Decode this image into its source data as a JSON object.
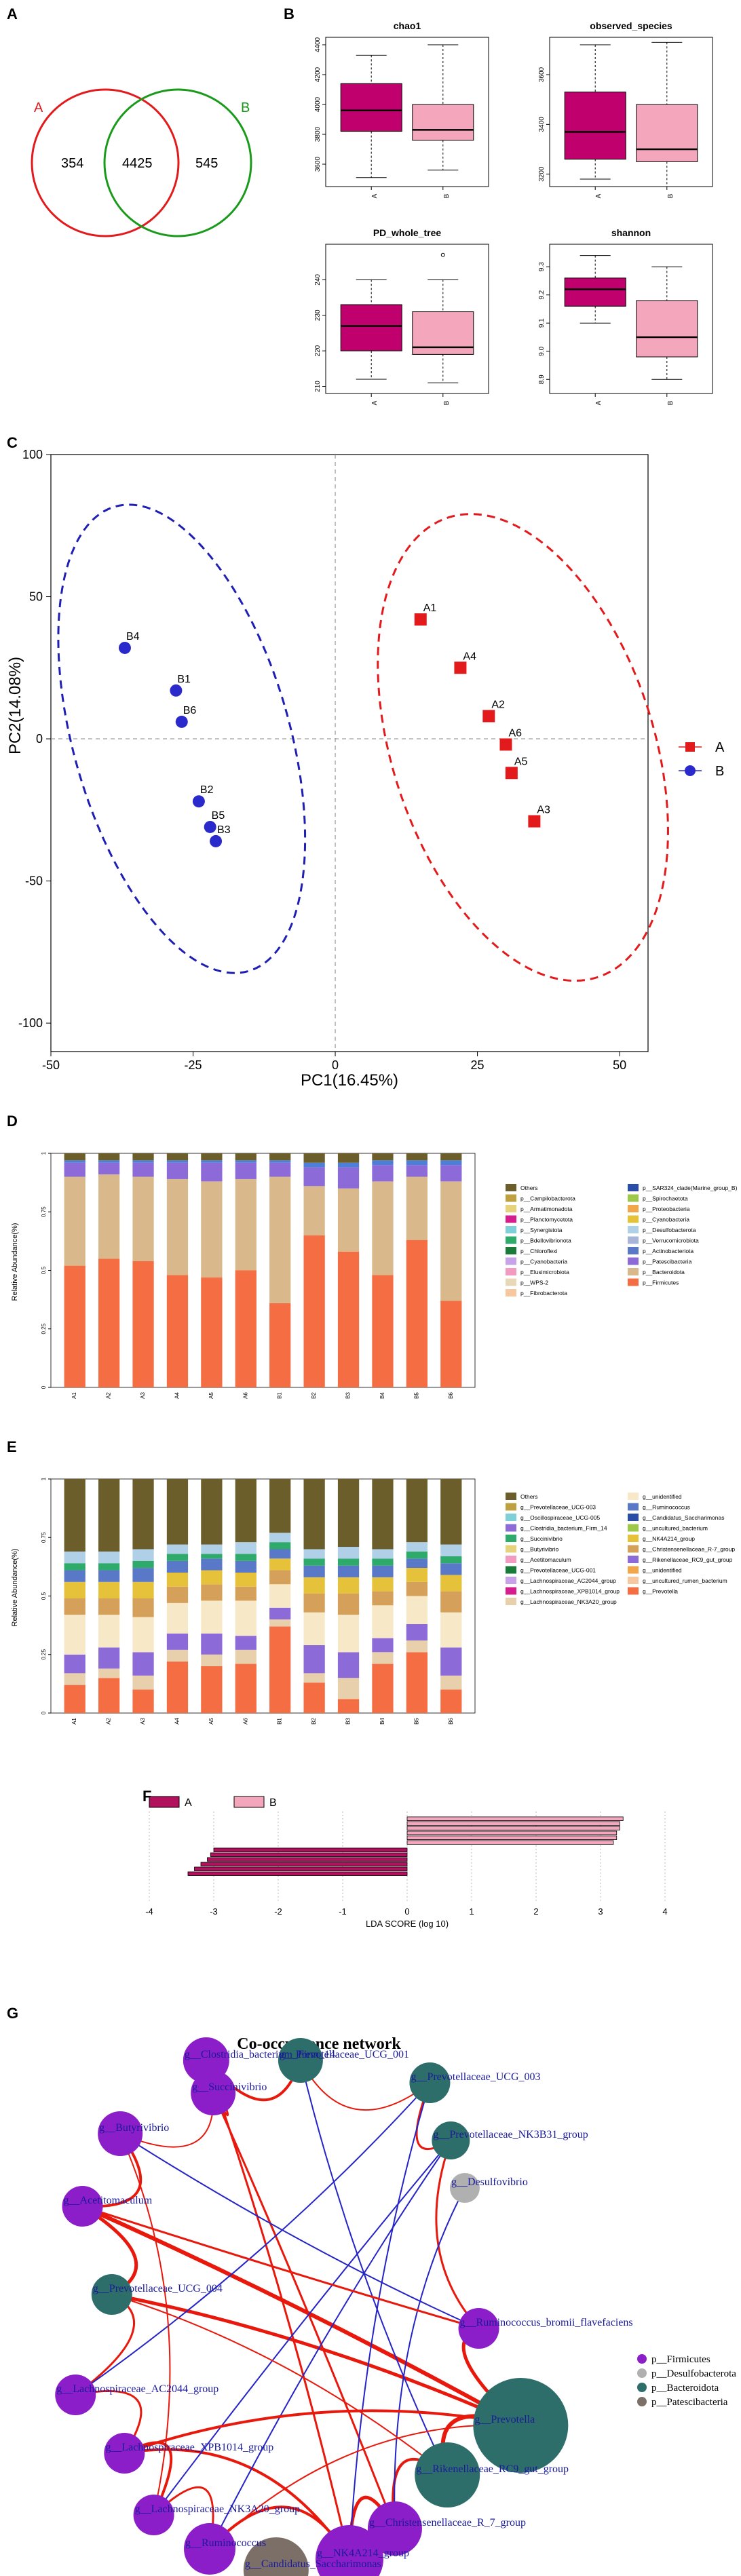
{
  "panels": {
    "a": "A",
    "b": "B",
    "c": "C",
    "d": "D",
    "e": "E",
    "f": "F",
    "g": "G"
  },
  "colors": {
    "group_a": "#e31a1c",
    "group_b": "#1f1fb4",
    "box_a": "#c0006c",
    "box_b": "#f4a6bc",
    "firmicutes": "#8b1ec8",
    "desulfo": "#b0b0b0",
    "bacteroidota": "#2e6e6a",
    "patescibacteria": "#7c6f68",
    "edge_pos": "#e8180c",
    "edge_neg": "#2424c8"
  },
  "venn": {
    "label_a": "A",
    "label_b": "B",
    "only_a": "354",
    "shared": "4425",
    "only_b": "545"
  },
  "chart_data": [
    {
      "type": "box",
      "title": "chao1",
      "categories": [
        "A",
        "B"
      ],
      "boxes": [
        {
          "min": 3510,
          "q1": 3820,
          "median": 3960,
          "q3": 4140,
          "max": 4330
        },
        {
          "min": 3560,
          "q1": 3760,
          "median": 3830,
          "q3": 4000,
          "max": 4400
        }
      ],
      "ylim": [
        3450,
        4450
      ],
      "yticks": [
        "3600",
        "3800",
        "4000",
        "4200",
        "4400"
      ]
    },
    {
      "type": "box",
      "title": "observed_species",
      "categories": [
        "A",
        "B"
      ],
      "boxes": [
        {
          "min": 3180,
          "q1": 3260,
          "median": 3370,
          "q3": 3530,
          "max": 3720
        },
        {
          "min": 3150,
          "q1": 3250,
          "median": 3300,
          "q3": 3480,
          "max": 3730
        }
      ],
      "ylim": [
        3150,
        3750
      ],
      "yticks": [
        "3200",
        "3400",
        "3600"
      ]
    },
    {
      "type": "box",
      "title": "PD_whole_tree",
      "categories": [
        "A",
        "B"
      ],
      "boxes": [
        {
          "min": 212,
          "q1": 220,
          "median": 227,
          "q3": 233,
          "max": 240
        },
        {
          "min": 211,
          "q1": 219,
          "median": 221,
          "q3": 231,
          "max": 240
        }
      ],
      "outliers_b": [
        247
      ],
      "ylim": [
        208,
        250
      ],
      "yticks": [
        "210",
        "220",
        "230",
        "240"
      ]
    },
    {
      "type": "box",
      "title": "shannon",
      "categories": [
        "A",
        "B"
      ],
      "boxes": [
        {
          "min": 9.1,
          "q1": 9.16,
          "median": 9.22,
          "q3": 9.26,
          "max": 9.34
        },
        {
          "min": 8.9,
          "q1": 8.98,
          "median": 9.05,
          "q3": 9.18,
          "max": 9.3
        }
      ],
      "ylim": [
        8.85,
        9.38
      ],
      "yticks": [
        "8.9",
        "9.0",
        "9.1",
        "9.2",
        "9.3"
      ]
    },
    {
      "type": "scatter",
      "xlabel": "PC1(16.45%)",
      "ylabel": "PC2(14.08%)",
      "xlim": [
        -50,
        55
      ],
      "ylim": [
        -110,
        100
      ],
      "xticks": [
        "-50",
        "-25",
        "0",
        "25",
        "50"
      ],
      "yticks": [
        "-100",
        "-50",
        "0",
        "50",
        "100"
      ],
      "legend": [
        "A",
        "B"
      ],
      "series": [
        {
          "name": "A",
          "points": [
            {
              "label": "A1",
              "x": 15,
              "y": 42
            },
            {
              "label": "A4",
              "x": 22,
              "y": 25
            },
            {
              "label": "A2",
              "x": 27,
              "y": 8
            },
            {
              "label": "A6",
              "x": 30,
              "y": -2
            },
            {
              "label": "A5",
              "x": 31,
              "y": -12
            },
            {
              "label": "A3",
              "x": 35,
              "y": -29
            }
          ]
        },
        {
          "name": "B",
          "points": [
            {
              "label": "B4",
              "x": -37,
              "y": 32
            },
            {
              "label": "B1",
              "x": -28,
              "y": 17
            },
            {
              "label": "B6",
              "x": -27,
              "y": 6
            },
            {
              "label": "B2",
              "x": -24,
              "y": -22
            },
            {
              "label": "B5",
              "x": -22,
              "y": -31
            },
            {
              "label": "B3",
              "x": -21,
              "y": -36
            }
          ]
        }
      ]
    },
    {
      "type": "bar",
      "stacked": true,
      "ylabel": "Relative Abundance(%)",
      "categories": [
        "A1",
        "A2",
        "A3",
        "A4",
        "A5",
        "A6",
        "B1",
        "B2",
        "B3",
        "B4",
        "B5",
        "B6"
      ],
      "yticks": [
        "0",
        "0.25",
        "0.5",
        "0.75",
        "1"
      ],
      "segments": [
        {
          "name": "p__Firmicutes",
          "color": "#f46d43",
          "values": [
            0.52,
            0.55,
            0.54,
            0.48,
            0.47,
            0.5,
            0.36,
            0.65,
            0.58,
            0.48,
            0.63,
            0.37
          ]
        },
        {
          "name": "p__Bacteroidota",
          "color": "#d9b98c",
          "values": [
            0.38,
            0.36,
            0.36,
            0.41,
            0.41,
            0.39,
            0.54,
            0.21,
            0.27,
            0.4,
            0.27,
            0.51
          ]
        },
        {
          "name": "p__Patescibacteria",
          "color": "#8c6bd8",
          "values": [
            0.06,
            0.05,
            0.06,
            0.07,
            0.08,
            0.07,
            0.06,
            0.08,
            0.09,
            0.07,
            0.05,
            0.07
          ]
        },
        {
          "name": "p__Actinobacteriota",
          "color": "#4e7fd8",
          "values": [
            0.01,
            0.01,
            0.01,
            0.01,
            0.01,
            0.01,
            0.01,
            0.02,
            0.02,
            0.02,
            0.02,
            0.02
          ]
        },
        {
          "name": "Others",
          "color": "#6b5e2a",
          "values": [
            0.03,
            0.03,
            0.03,
            0.03,
            0.03,
            0.03,
            0.03,
            0.04,
            0.04,
            0.03,
            0.03,
            0.03
          ]
        }
      ],
      "legend": [
        "Others",
        "p__Campilobacterota",
        "p__Armatimonadota",
        "p__Planctomycetota",
        "p__Synergistota",
        "p__Bdellovibrionota",
        "p__Chloroflexi",
        "p__Cyanobacteria",
        "p__Elusimicrobiota",
        "p__WPS-2",
        "p__Fibrobacterota",
        "p__SAR324_clade(Marine_group_B)",
        "p__Spirochaetota",
        "p__Proteobacteria",
        "p__Cyanobacteria",
        "p__Desulfobacterota",
        "p__Verrucomicrobiota",
        "p__Actinobacteriota",
        "p__Patescibacteria",
        "p__Bacteroidota",
        "p__Firmicutes"
      ],
      "legend_colors": [
        "#6b5e2a",
        "#bfa040",
        "#e6d27a",
        "#d61f8f",
        "#7ed0d8",
        "#2eaa6a",
        "#1a7a3a",
        "#c8a2e8",
        "#f29ac0",
        "#e8d8b8",
        "#f7c8a0",
        "#2a4ea8",
        "#9ec84a",
        "#f2a64a",
        "#e6c13a",
        "#b0d0e8",
        "#a8b4d8",
        "#5a78c8",
        "#8c6bd8",
        "#d9b98c",
        "#f46d43"
      ]
    },
    {
      "type": "bar",
      "stacked": true,
      "ylabel": "Relative Abundance(%)",
      "categories": [
        "A1",
        "A2",
        "A3",
        "A4",
        "A5",
        "A6",
        "B1",
        "B2",
        "B3",
        "B4",
        "B5",
        "B6"
      ],
      "yticks": [
        "0",
        "0.25",
        "0.5",
        "0.75",
        "1"
      ],
      "segments": [
        {
          "name": "g__Prevotella",
          "color": "#f46d43",
          "values": [
            0.12,
            0.15,
            0.1,
            0.22,
            0.2,
            0.21,
            0.37,
            0.13,
            0.06,
            0.21,
            0.26,
            0.1
          ]
        },
        {
          "name": "g__Lachnospiraceae_NK3A20_group",
          "color": "#e8d0ad",
          "values": [
            0.05,
            0.04,
            0.06,
            0.05,
            0.05,
            0.06,
            0.03,
            0.04,
            0.09,
            0.05,
            0.05,
            0.06
          ]
        },
        {
          "name": "g__Rikenellaceae_RC9_gut_group",
          "color": "#8c6bd8",
          "values": [
            0.08,
            0.09,
            0.1,
            0.07,
            0.09,
            0.06,
            0.05,
            0.12,
            0.11,
            0.06,
            0.07,
            0.12
          ]
        },
        {
          "name": "g__unidentified",
          "color": "#f7e9c8",
          "values": [
            0.17,
            0.14,
            0.15,
            0.13,
            0.14,
            0.15,
            0.1,
            0.14,
            0.16,
            0.14,
            0.12,
            0.15
          ]
        },
        {
          "name": "g__Christensenellaceae_R-7_group",
          "color": "#d4a05a",
          "values": [
            0.07,
            0.07,
            0.08,
            0.07,
            0.07,
            0.06,
            0.06,
            0.08,
            0.09,
            0.06,
            0.06,
            0.09
          ]
        },
        {
          "name": "g__NK4A214_group",
          "color": "#e6c13a",
          "values": [
            0.07,
            0.07,
            0.07,
            0.06,
            0.06,
            0.06,
            0.05,
            0.07,
            0.07,
            0.06,
            0.06,
            0.07
          ]
        },
        {
          "name": "g__Ruminococcus",
          "color": "#5a78c8",
          "values": [
            0.05,
            0.05,
            0.06,
            0.05,
            0.05,
            0.05,
            0.04,
            0.05,
            0.05,
            0.05,
            0.04,
            0.05
          ]
        },
        {
          "name": "g__Succinivibrio",
          "color": "#2eaa6a",
          "values": [
            0.03,
            0.03,
            0.03,
            0.03,
            0.02,
            0.03,
            0.03,
            0.03,
            0.03,
            0.03,
            0.03,
            0.03
          ]
        },
        {
          "name": "g__Oscillospiraceae_UCG-005",
          "color": "#b0d0e8",
          "values": [
            0.05,
            0.05,
            0.05,
            0.04,
            0.04,
            0.05,
            0.04,
            0.04,
            0.05,
            0.04,
            0.04,
            0.05
          ]
        },
        {
          "name": "Others",
          "color": "#6b5e2a",
          "values": [
            0.31,
            0.31,
            0.3,
            0.28,
            0.28,
            0.27,
            0.23,
            0.3,
            0.29,
            0.3,
            0.27,
            0.28
          ]
        }
      ],
      "legend": [
        "Others",
        "g__Prevotellaceae_UCG-003",
        "g__Oscillospiraceae_UCG-005",
        "g__Clostridia_bacterium_Firm_14",
        "g__Succinivibrio",
        "g__Butyrivibrio",
        "g__Acetitomaculum",
        "g__Prevotellaceae_UCG-001",
        "g__Lachnospiraceae_AC2044_group",
        "g__Lachnospiraceae_XPB1014_group",
        "g__Lachnospiraceae_NK3A20_group",
        "g__unidentified",
        "g__Ruminococcus",
        "g__Candidatus_Saccharimonas",
        "g__uncultured_bacterium",
        "g__NK4A214_group",
        "g__Christensenellaceae_R-7_group",
        "g__Rikenellaceae_RC9_gut_group",
        "g__unidentified",
        "g__uncultured_rumen_bacterium",
        "g__Prevotella"
      ],
      "legend_colors": [
        "#6b5e2a",
        "#bfa040",
        "#7ed0d8",
        "#8c6bd8",
        "#2eaa6a",
        "#e6d27a",
        "#f29ac0",
        "#1a7a3a",
        "#c8a2e8",
        "#d61f8f",
        "#e8d0ad",
        "#f7e9c8",
        "#5a78c8",
        "#2a4ea8",
        "#9ec84a",
        "#e6c13a",
        "#d4a05a",
        "#8c6bd8",
        "#f2a64a",
        "#f7c8a0",
        "#f46d43"
      ]
    },
    {
      "type": "bar",
      "orientation": "horizontal",
      "xlabel": "LDA SCORE (log 10)",
      "xlim": [
        -4,
        4
      ],
      "xticks": [
        "-4",
        "-3",
        "-2",
        "-1",
        "0",
        "1",
        "2",
        "3",
        "4"
      ],
      "legend": [
        "A",
        "B"
      ],
      "series": [
        {
          "name": "B",
          "values": [
            3.35,
            3.3,
            3.3,
            3.25,
            3.25,
            3.2
          ]
        },
        {
          "name": "A",
          "values": [
            -3.0,
            -3.05,
            -3.1,
            -3.2,
            -3.3,
            -3.4
          ]
        }
      ]
    }
  ],
  "network": {
    "title": "Co-occurrence network",
    "nodes": [
      {
        "label": "g__Clostridia_bacterium_Firm_14",
        "phylum": "firmicutes"
      },
      {
        "label": "g__Prevotellaceae_UCG_001",
        "phylum": "bacteroidota"
      },
      {
        "label": "g__Succinivibrio",
        "phylum": "firmicutes"
      },
      {
        "label": "g__Butyrivibrio",
        "phylum": "firmicutes"
      },
      {
        "label": "g__Prevotellaceae_UCG_003",
        "phylum": "bacteroidota"
      },
      {
        "label": "g__Prevotellaceae_NK3B31_group",
        "phylum": "bacteroidota"
      },
      {
        "label": "g__Desulfovibrio",
        "phylum": "desulfo"
      },
      {
        "label": "g__Acetitomaculum",
        "phylum": "firmicutes"
      },
      {
        "label": "g__Prevotellaceae_UCG_004",
        "phylum": "bacteroidota"
      },
      {
        "label": "g__Ruminococcus_bromii_flavefaciens",
        "phylum": "firmicutes"
      },
      {
        "label": "g__Lachnospiraceae_AC2044_group",
        "phylum": "firmicutes"
      },
      {
        "label": "g__Prevotella",
        "phylum": "bacteroidota"
      },
      {
        "label": "g__Lachnospiraceae_XPB1014_group",
        "phylum": "firmicutes"
      },
      {
        "label": "g__Rikenellaceae_RC9_gut_group",
        "phylum": "bacteroidota"
      },
      {
        "label": "g__Lachnospiraceae_NK3A20_group",
        "phylum": "firmicutes"
      },
      {
        "label": "g__Christensenellaceae_R_7_group",
        "phylum": "firmicutes"
      },
      {
        "label": "g__Ruminococcus",
        "phylum": "firmicutes"
      },
      {
        "label": "g__NK4A214_group",
        "phylum": "firmicutes"
      },
      {
        "label": "g__Candidatus_Saccharimonas",
        "phylum": "patescibacteria"
      }
    ],
    "legend": [
      {
        "label": "p__Firmicutes",
        "color": "#8b1ec8"
      },
      {
        "label": "p__Desulfobacterota",
        "color": "#b0b0b0"
      },
      {
        "label": "p__Bacteroidota",
        "color": "#2e6e6a"
      },
      {
        "label": "p__Patescibacteria",
        "color": "#7c6f68"
      }
    ]
  }
}
